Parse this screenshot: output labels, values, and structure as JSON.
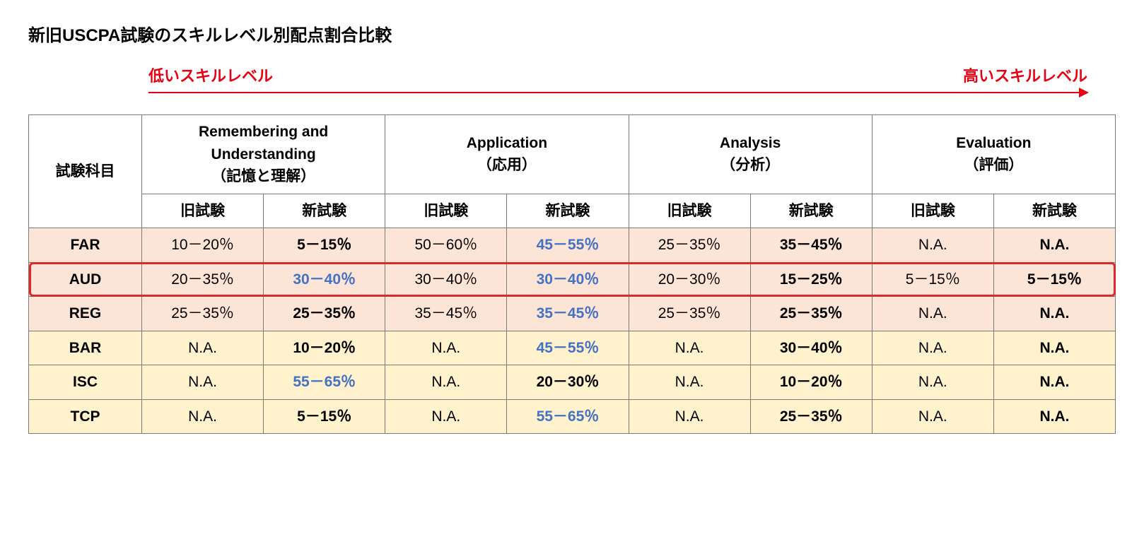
{
  "title": "新旧USCPA試験のスキルレベル別配点割合比較",
  "skill_arrow": {
    "low_label": "低いスキルレベル",
    "high_label": "高いスキルレベル",
    "color": "#e60012"
  },
  "table": {
    "subject_header": "試験科目",
    "skill_groups": [
      {
        "en": "Remembering and Understanding",
        "jp": "（記憶と理解）"
      },
      {
        "en": "Application",
        "jp": "（応用）"
      },
      {
        "en": "Analysis",
        "jp": "（分析）"
      },
      {
        "en": "Evaluation",
        "jp": "（評価）"
      }
    ],
    "sub_headers": {
      "old": "旧試験",
      "new": "新試験"
    },
    "rows": [
      {
        "subject": "FAR",
        "row_class": "pink",
        "highlight": false,
        "cells": [
          {
            "old": "10－20％",
            "new": "5－15％",
            "new_blue": false
          },
          {
            "old": "50－60％",
            "new": "45－55％",
            "new_blue": true
          },
          {
            "old": "25－35％",
            "new": "35－45％",
            "new_blue": false
          },
          {
            "old": "N.A.",
            "new": "N.A.",
            "new_blue": false
          }
        ]
      },
      {
        "subject": "AUD",
        "row_class": "pink",
        "highlight": true,
        "cells": [
          {
            "old": "20－35％",
            "new": "30－40％",
            "new_blue": true
          },
          {
            "old": "30－40％",
            "new": "30－40％",
            "new_blue": true
          },
          {
            "old": "20－30％",
            "new": "15－25％",
            "new_blue": false
          },
          {
            "old": "5－15％",
            "new": "5－15％",
            "new_blue": false
          }
        ]
      },
      {
        "subject": "REG",
        "row_class": "pink",
        "highlight": false,
        "cells": [
          {
            "old": "25－35％",
            "new": "25－35％",
            "new_blue": false
          },
          {
            "old": "35－45％",
            "new": "35－45％",
            "new_blue": true
          },
          {
            "old": "25－35％",
            "new": "25－35％",
            "new_blue": false
          },
          {
            "old": "N.A.",
            "new": "N.A.",
            "new_blue": false
          }
        ]
      },
      {
        "subject": "BAR",
        "row_class": "yellow",
        "highlight": false,
        "cells": [
          {
            "old": "N.A.",
            "new": "10－20％",
            "new_blue": false
          },
          {
            "old": "N.A.",
            "new": "45－55％",
            "new_blue": true
          },
          {
            "old": "N.A.",
            "new": "30－40％",
            "new_blue": false
          },
          {
            "old": "N.A.",
            "new": "N.A.",
            "new_blue": false
          }
        ]
      },
      {
        "subject": "ISC",
        "row_class": "yellow",
        "highlight": false,
        "cells": [
          {
            "old": "N.A.",
            "new": "55－65％",
            "new_blue": true
          },
          {
            "old": "N.A.",
            "new": "20－30％",
            "new_blue": false
          },
          {
            "old": "N.A.",
            "new": "10－20％",
            "new_blue": false
          },
          {
            "old": "N.A.",
            "new": "N.A.",
            "new_blue": false
          }
        ]
      },
      {
        "subject": "TCP",
        "row_class": "yellow",
        "highlight": false,
        "cells": [
          {
            "old": "N.A.",
            "new": "5－15％",
            "new_blue": false
          },
          {
            "old": "N.A.",
            "new": "55－65％",
            "new_blue": true
          },
          {
            "old": "N.A.",
            "new": "25－35％",
            "new_blue": false
          },
          {
            "old": "N.A.",
            "new": "N.A.",
            "new_blue": false
          }
        ]
      }
    ],
    "colors": {
      "row_pink_bg": "#fce4d6",
      "row_yellow_bg": "#fff2cc",
      "blue_text": "#4472c4",
      "highlight_border": "#d92b2b",
      "border": "#7a7a7a"
    }
  }
}
